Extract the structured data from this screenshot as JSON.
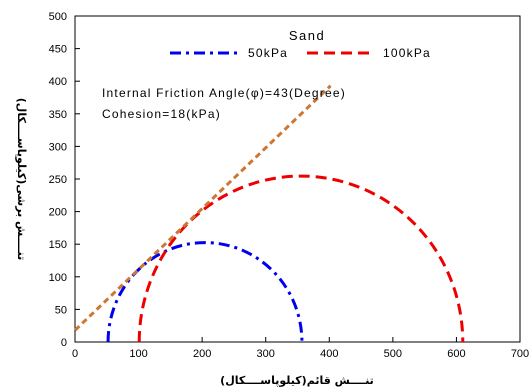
{
  "chart_data": {
    "type": "line",
    "title": "",
    "xlabel": "تنــــش قائم(کیلوپاســــکال)",
    "ylabel": "تنــــش برشی(کیلوپاســــکال)",
    "xlim": [
      0,
      700
    ],
    "ylim": [
      0,
      500
    ],
    "x_ticks": [
      "0",
      "100",
      "200",
      "300",
      "400",
      "500",
      "600",
      "700"
    ],
    "y_ticks": [
      "0",
      "50",
      "100",
      "150",
      "200",
      "250",
      "300",
      "350",
      "400",
      "450",
      "500"
    ],
    "grid": false,
    "legend": {
      "title": "Sand",
      "placement": "top-center",
      "entries": [
        {
          "label": "50kPa",
          "color": "#0000ee",
          "style": "dash-dot"
        },
        {
          "label": "100kPa",
          "color": "#ee0000",
          "style": "dashed"
        }
      ]
    },
    "annotations": [
      "Internal Friction Angle(φ)=43(Degree)",
      "Cohesion=18(kPa)"
    ],
    "series": [
      {
        "name": "50kPa",
        "shape": "mohr-circle",
        "sigma3": 52,
        "sigma1": 357,
        "center": 204.5,
        "radius": 152.5,
        "color": "#0000ee",
        "style": "dash-dot"
      },
      {
        "name": "100kPa",
        "shape": "mohr-circle",
        "sigma3": 101,
        "sigma1": 610,
        "center": 355.5,
        "radius": 254.5,
        "color": "#ee0000",
        "style": "dashed"
      },
      {
        "name": "",
        "shape": "failure-envelope",
        "cohesion": 18,
        "slope": 0.9325,
        "x": [
          0,
          402
        ],
        "y": [
          18,
          393
        ],
        "color": "#cc7733",
        "style": "dashed"
      }
    ]
  }
}
